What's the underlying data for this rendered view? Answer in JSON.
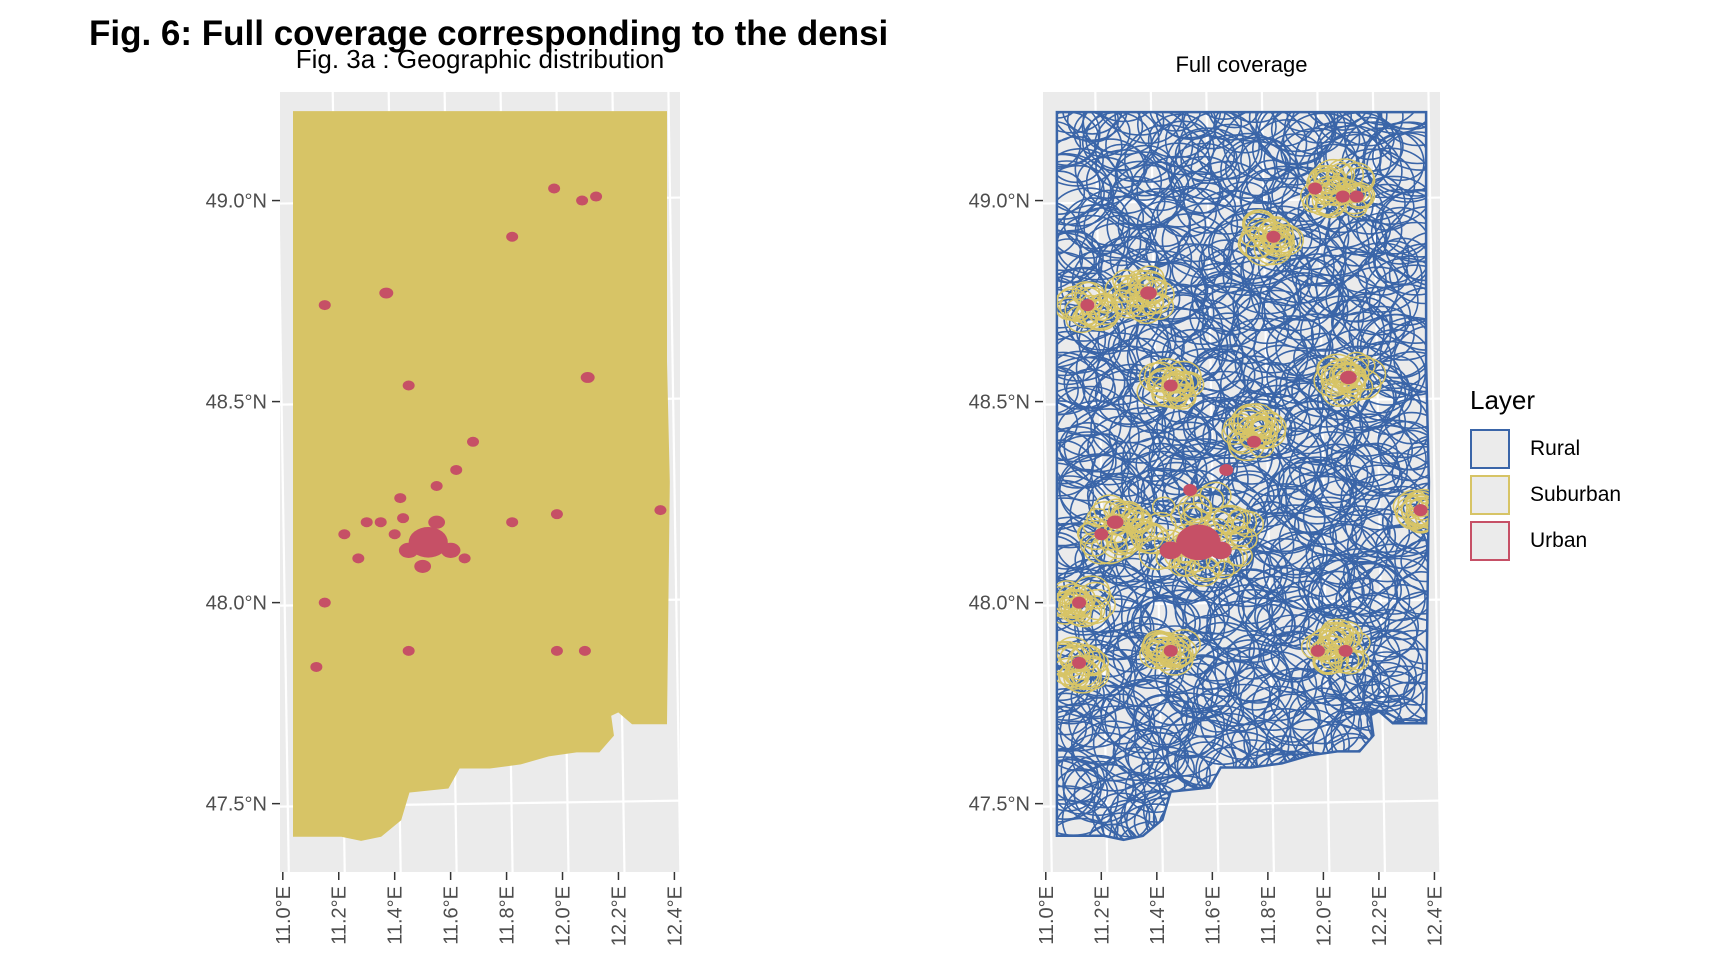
{
  "figure": {
    "title": "Fig. 6: Full coverage corresponding to the densi"
  },
  "colors": {
    "rural": "#3a65a8",
    "suburban": "#d7c466",
    "urban": "#c65066",
    "panel_bg": "#ebebeb",
    "grid": "#ffffff"
  },
  "chart_data": [
    {
      "type": "map",
      "title": "Fig. 3a : Geographic distribution",
      "x_ticks": [
        "11.0°E",
        "11.2°E",
        "11.4°E",
        "11.6°E",
        "11.8°E",
        "12.0°E",
        "12.2°E",
        "12.4°E"
      ],
      "y_ticks": [
        "47.5°N",
        "48.0°N",
        "48.5°N",
        "49.0°N"
      ],
      "xlim": [
        10.99,
        12.42
      ],
      "ylim": [
        47.33,
        49.27
      ],
      "region_fill": "suburban",
      "urban_areas": [
        {
          "lon": 11.52,
          "lat": 48.15,
          "r": 0.07
        },
        {
          "lon": 11.45,
          "lat": 48.13,
          "r": 0.035
        },
        {
          "lon": 11.6,
          "lat": 48.13,
          "r": 0.035
        },
        {
          "lon": 11.55,
          "lat": 48.2,
          "r": 0.03
        },
        {
          "lon": 11.5,
          "lat": 48.09,
          "r": 0.03
        },
        {
          "lon": 11.4,
          "lat": 48.17,
          "r": 0.02
        },
        {
          "lon": 11.43,
          "lat": 48.21,
          "r": 0.015
        },
        {
          "lon": 11.35,
          "lat": 48.2,
          "r": 0.015
        },
        {
          "lon": 11.3,
          "lat": 48.2,
          "r": 0.015
        },
        {
          "lon": 11.22,
          "lat": 48.17,
          "r": 0.015
        },
        {
          "lon": 11.27,
          "lat": 48.11,
          "r": 0.012
        },
        {
          "lon": 11.65,
          "lat": 48.11,
          "r": 0.015
        },
        {
          "lon": 11.62,
          "lat": 48.33,
          "r": 0.012
        },
        {
          "lon": 11.55,
          "lat": 48.29,
          "r": 0.012
        },
        {
          "lon": 11.42,
          "lat": 48.26,
          "r": 0.012
        },
        {
          "lon": 11.68,
          "lat": 48.4,
          "r": 0.015
        },
        {
          "lon": 11.45,
          "lat": 48.54,
          "r": 0.015
        },
        {
          "lon": 11.37,
          "lat": 48.77,
          "r": 0.025
        },
        {
          "lon": 11.15,
          "lat": 48.74,
          "r": 0.012
        },
        {
          "lon": 11.82,
          "lat": 48.91,
          "r": 0.012
        },
        {
          "lon": 11.97,
          "lat": 49.03,
          "r": 0.015
        },
        {
          "lon": 12.07,
          "lat": 49.0,
          "r": 0.012
        },
        {
          "lon": 12.12,
          "lat": 49.01,
          "r": 0.015
        },
        {
          "lon": 12.09,
          "lat": 48.56,
          "r": 0.025
        },
        {
          "lon": 12.35,
          "lat": 48.23,
          "r": 0.012
        },
        {
          "lon": 11.82,
          "lat": 48.2,
          "r": 0.012
        },
        {
          "lon": 11.98,
          "lat": 48.22,
          "r": 0.012
        },
        {
          "lon": 11.15,
          "lat": 48.0,
          "r": 0.012
        },
        {
          "lon": 11.12,
          "lat": 47.84,
          "r": 0.015
        },
        {
          "lon": 11.45,
          "lat": 47.88,
          "r": 0.012
        },
        {
          "lon": 11.98,
          "lat": 47.88,
          "r": 0.012
        },
        {
          "lon": 12.08,
          "lat": 47.88,
          "r": 0.012
        }
      ]
    },
    {
      "type": "map",
      "title": "Full coverage",
      "x_ticks": [
        "11.0°E",
        "11.2°E",
        "11.4°E",
        "11.6°E",
        "11.8°E",
        "12.0°E",
        "12.2°E",
        "12.4°E"
      ],
      "y_ticks": [
        "47.5°N",
        "48.0°N",
        "48.5°N",
        "49.0°N"
      ],
      "xlim": [
        10.99,
        12.42
      ],
      "ylim": [
        47.33,
        49.27
      ],
      "legend": {
        "title": "Layer",
        "position": "right",
        "entries": [
          {
            "label": "Rural",
            "color_key": "rural"
          },
          {
            "label": "Suburban",
            "color_key": "suburban"
          },
          {
            "label": "Urban",
            "color_key": "urban"
          }
        ]
      },
      "suburban_clusters": [
        {
          "lon": 11.55,
          "lat": 48.17,
          "r": 0.22
        },
        {
          "lon": 11.25,
          "lat": 48.18,
          "r": 0.12
        },
        {
          "lon": 11.12,
          "lat": 48.0,
          "r": 0.08
        },
        {
          "lon": 11.12,
          "lat": 47.85,
          "r": 0.08
        },
        {
          "lon": 11.45,
          "lat": 47.88,
          "r": 0.08
        },
        {
          "lon": 12.05,
          "lat": 47.88,
          "r": 0.1
        },
        {
          "lon": 11.35,
          "lat": 48.77,
          "r": 0.1
        },
        {
          "lon": 11.15,
          "lat": 48.74,
          "r": 0.08
        },
        {
          "lon": 11.45,
          "lat": 48.54,
          "r": 0.08
        },
        {
          "lon": 11.8,
          "lat": 48.91,
          "r": 0.08
        },
        {
          "lon": 12.05,
          "lat": 49.02,
          "r": 0.12
        },
        {
          "lon": 12.09,
          "lat": 48.56,
          "r": 0.09
        },
        {
          "lon": 11.75,
          "lat": 48.42,
          "r": 0.09
        },
        {
          "lon": 12.35,
          "lat": 48.23,
          "r": 0.06
        }
      ],
      "urban_areas": [
        {
          "lon": 11.55,
          "lat": 48.15,
          "r": 0.08
        },
        {
          "lon": 11.45,
          "lat": 48.13,
          "r": 0.04
        },
        {
          "lon": 11.63,
          "lat": 48.13,
          "r": 0.04
        },
        {
          "lon": 11.52,
          "lat": 48.28,
          "r": 0.025
        },
        {
          "lon": 11.25,
          "lat": 48.2,
          "r": 0.03
        },
        {
          "lon": 11.2,
          "lat": 48.17,
          "r": 0.02
        },
        {
          "lon": 11.12,
          "lat": 48.0,
          "r": 0.02
        },
        {
          "lon": 11.12,
          "lat": 47.85,
          "r": 0.025
        },
        {
          "lon": 11.45,
          "lat": 47.88,
          "r": 0.02
        },
        {
          "lon": 11.98,
          "lat": 47.88,
          "r": 0.02
        },
        {
          "lon": 12.08,
          "lat": 47.88,
          "r": 0.02
        },
        {
          "lon": 11.37,
          "lat": 48.77,
          "r": 0.03
        },
        {
          "lon": 11.15,
          "lat": 48.74,
          "r": 0.02
        },
        {
          "lon": 11.45,
          "lat": 48.54,
          "r": 0.025
        },
        {
          "lon": 11.82,
          "lat": 48.91,
          "r": 0.02
        },
        {
          "lon": 11.97,
          "lat": 49.03,
          "r": 0.02
        },
        {
          "lon": 12.07,
          "lat": 49.01,
          "r": 0.025
        },
        {
          "lon": 12.12,
          "lat": 49.01,
          "r": 0.02
        },
        {
          "lon": 12.09,
          "lat": 48.56,
          "r": 0.03
        },
        {
          "lon": 11.75,
          "lat": 48.4,
          "r": 0.025
        },
        {
          "lon": 12.35,
          "lat": 48.23,
          "r": 0.02
        },
        {
          "lon": 11.65,
          "lat": 48.33,
          "r": 0.015
        }
      ]
    }
  ]
}
